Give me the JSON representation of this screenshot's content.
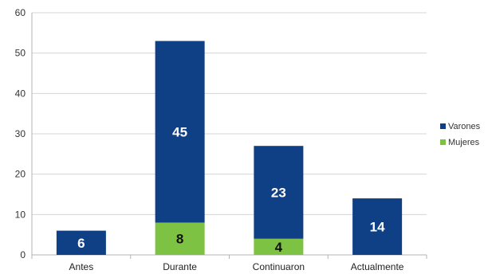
{
  "chart_data": {
    "type": "bar",
    "stacked": true,
    "categories": [
      "Antes",
      "Durante",
      "Continuaron",
      "Actualmente"
    ],
    "series": [
      {
        "name": "Mujeres",
        "color": "#7dc242",
        "values": [
          0,
          8,
          4,
          0
        ],
        "labels": [
          "",
          "8",
          "4",
          ""
        ],
        "label_color": "#111111"
      },
      {
        "name": "Varones",
        "color": "#0f3f85",
        "values": [
          6,
          45,
          23,
          14
        ],
        "labels": [
          "6",
          "45",
          "23",
          "14"
        ],
        "label_color": "#ffffff"
      }
    ],
    "legend_order": [
      "Varones",
      "Mujeres"
    ],
    "title": "",
    "xlabel": "",
    "ylabel": "",
    "ylim": [
      0,
      60
    ],
    "yticks": [
      "0",
      "10",
      "20",
      "30",
      "40",
      "50",
      "60"
    ],
    "grid": true,
    "legend_position": "right"
  }
}
